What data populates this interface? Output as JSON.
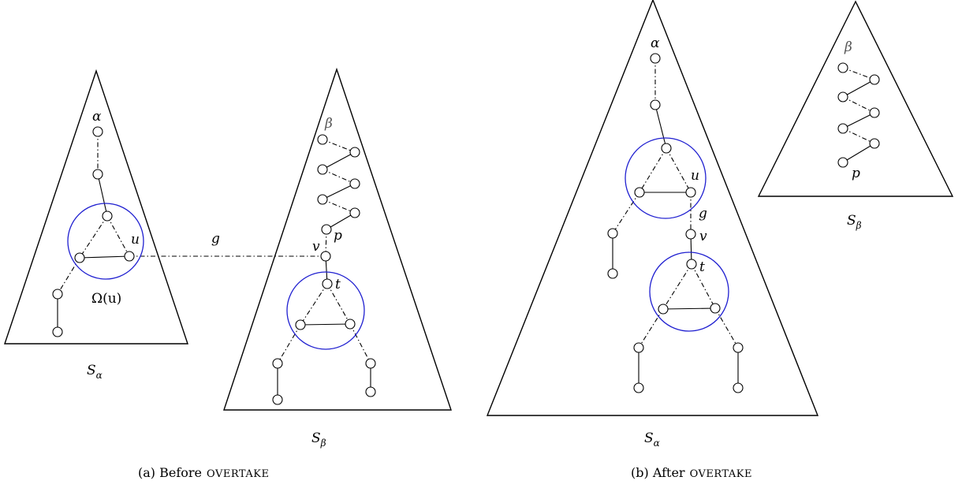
{
  "panel_a": {
    "caption_prefix": "(a) Before",
    "caption_word": "OVERTAKE",
    "tree_alpha": {
      "name": "S",
      "sub": "α"
    },
    "tree_beta": {
      "name": "S",
      "sub": "β"
    },
    "label_alpha": "α",
    "label_beta": "β",
    "label_u": "u",
    "label_omega": "Ω(u)",
    "label_g": "g",
    "label_v": "v",
    "label_p": "p",
    "label_t": "t"
  },
  "panel_b": {
    "caption_prefix": "(b) After",
    "caption_word": "OVERTAKE",
    "tree_alpha": {
      "name": "S",
      "sub": "α"
    },
    "tree_beta": {
      "name": "S",
      "sub": "β"
    },
    "label_alpha": "α",
    "label_beta": "β",
    "label_u": "u",
    "label_g": "g",
    "label_v": "v",
    "label_t": "t",
    "label_p": "p"
  },
  "colors": {
    "ring": "#1f1fd0",
    "line": "#000000"
  }
}
